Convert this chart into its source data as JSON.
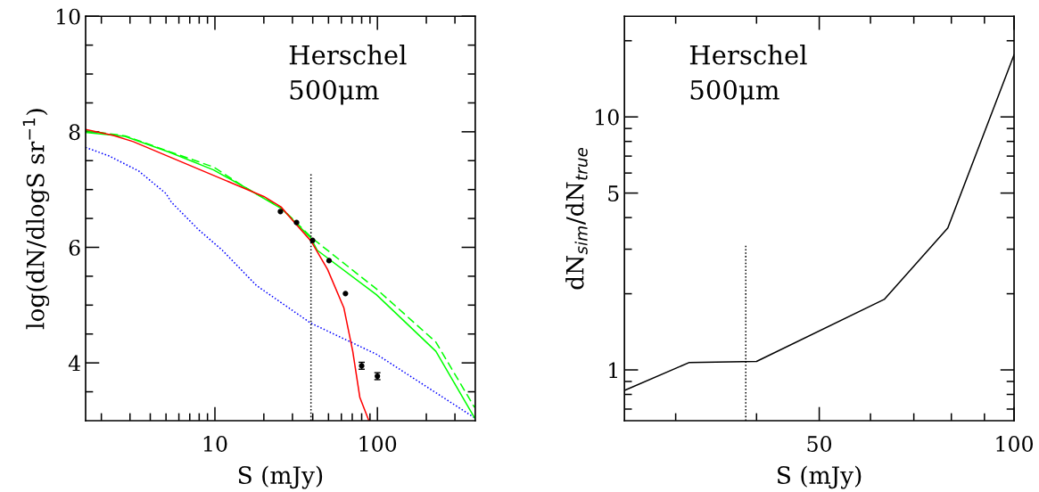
{
  "chart_data": [
    {
      "type": "line",
      "xlabel": "S (mJy)",
      "ylabel": "log(dN/dlogS sr$^{−1}$)",
      "log": "x",
      "xlim": [
        1.6,
        400
      ],
      "ylim": [
        3,
        10
      ],
      "xticks": [
        {
          "value": 2,
          "label": null
        },
        {
          "value": 3,
          "label": null
        },
        {
          "value": 4,
          "label": null
        },
        {
          "value": 5,
          "label": null
        },
        {
          "value": 6,
          "label": null
        },
        {
          "value": 7,
          "label": null
        },
        {
          "value": 8,
          "label": null
        },
        {
          "value": 9,
          "label": null
        },
        10,
        {
          "value": 20,
          "label": null
        },
        {
          "value": 30,
          "label": null
        },
        {
          "value": 40,
          "label": null
        },
        {
          "value": 50,
          "label": null
        },
        {
          "value": 60,
          "label": null
        },
        {
          "value": 70,
          "label": null
        },
        {
          "value": 80,
          "label": null
        },
        {
          "value": 90,
          "label": null
        },
        100,
        {
          "value": 200,
          "label": null
        },
        {
          "value": 300,
          "label": null
        }
      ],
      "yticks": [
        {
          "value": 3.5,
          "label": null
        },
        4,
        {
          "value": 4.5,
          "label": null
        },
        {
          "value": 5,
          "label": null
        },
        {
          "value": 5.5,
          "label": null
        },
        6,
        {
          "value": 6.5,
          "label": null
        },
        {
          "value": 7,
          "label": null
        },
        {
          "value": 7.5,
          "label": null
        },
        8,
        {
          "value": 8.5,
          "label": null
        },
        {
          "value": 9,
          "label": null
        },
        {
          "value": 9.5,
          "label": null
        },
        10
      ],
      "annotations": [
        "Herschel\n500μm"
      ],
      "series": [
        {
          "color": "#0000ff",
          "line_style": "dotted",
          "x": [
            1.6,
            2.24,
            3.4,
            5,
            5.4,
            7.9,
            11.1,
            18,
            38.8,
            98.6,
            396
          ],
          "values": [
            7.73,
            7.58,
            7.32,
            6.93,
            6.78,
            6.31,
            5.95,
            5.34,
            4.69,
            4.15,
            3.05
          ]
        },
        {
          "color": "#00ff00",
          "line_style": "solid",
          "x": [
            1.6,
            2.8,
            5.2,
            9.8,
            15.5,
            25.7,
            39,
            42.6,
            98.6,
            229,
            396
          ],
          "values": [
            7.99,
            7.92,
            7.65,
            7.34,
            7.03,
            6.67,
            6.16,
            5.95,
            5.18,
            4.2,
            3.05
          ]
        },
        {
          "color": "#00ff00",
          "line_style": "dashed",
          "x": [
            1.6,
            2.8,
            5.2,
            9.8,
            15.5,
            25.7,
            40,
            98.6,
            229,
            396
          ],
          "values": [
            8.02,
            7.93,
            7.66,
            7.39,
            7.03,
            6.68,
            6.15,
            5.28,
            4.36,
            3.23
          ]
        },
        {
          "color": "#ff0000",
          "line_style": "solid",
          "x": [
            1.6,
            2.35,
            3.14,
            15.5,
            20,
            25.5,
            31.8,
            39,
            49.3,
            62.2,
            70.5,
            78,
            88.6
          ],
          "values": [
            8.04,
            7.94,
            7.83,
            7.01,
            6.88,
            6.7,
            6.39,
            6.11,
            5.62,
            4.95,
            4.2,
            3.4,
            3.0
          ]
        },
        {
          "color": "#000000",
          "line_style": "dotted",
          "x": [
            39,
            39
          ],
          "values": [
            3,
            7.3
          ]
        },
        {
          "type": "scatter",
          "color": "#000000",
          "marker": "circle",
          "x": [
            25.3,
            31.8,
            39.9,
            50.4,
            63.6,
            80,
            100
          ],
          "values": [
            6.62,
            6.43,
            6.12,
            5.77,
            5.2,
            3.95,
            3.77
          ],
          "errors": [
            null,
            null,
            null,
            null,
            null,
            0.06,
            0.06
          ]
        }
      ]
    },
    {
      "type": "line",
      "xlabel": "S (mJy)",
      "ylabel": "dN$_{sim}$/dN$_{true}$",
      "log": "xy",
      "xlim": [
        25,
        100
      ],
      "ylim": [
        0.63,
        25
      ],
      "xticks": [
        {
          "value": 30,
          "label": null
        },
        {
          "value": 40,
          "label": null
        },
        50,
        {
          "value": 60,
          "label": null
        },
        {
          "value": 70,
          "label": null
        },
        {
          "value": 80,
          "label": null
        },
        {
          "value": 90,
          "label": null
        },
        100
      ],
      "yticks": [
        {
          "value": 0.7,
          "label": null
        },
        {
          "value": 0.8,
          "label": null
        },
        {
          "value": 0.9,
          "label": null
        },
        1,
        {
          "value": 2,
          "label": null
        },
        {
          "value": 3,
          "label": null
        },
        {
          "value": 4,
          "label": null
        },
        5,
        {
          "value": 6,
          "label": null
        },
        {
          "value": 7,
          "label": null
        },
        {
          "value": 8,
          "label": null
        },
        {
          "value": 9,
          "label": null
        },
        10,
        {
          "value": 20,
          "label": null
        }
      ],
      "annotations": [
        "Herschel\n500μm"
      ],
      "series": [
        {
          "color": "#000000",
          "line_style": "solid",
          "x": [
            25,
            31.5,
            40,
            63,
            79,
            100
          ],
          "values": [
            0.83,
            1.07,
            1.08,
            1.9,
            3.64,
            17.6
          ]
        },
        {
          "color": "#000000",
          "line_style": "dotted",
          "x": [
            38.5,
            38.5
          ],
          "values": [
            0.63,
            3.1
          ]
        }
      ]
    }
  ]
}
